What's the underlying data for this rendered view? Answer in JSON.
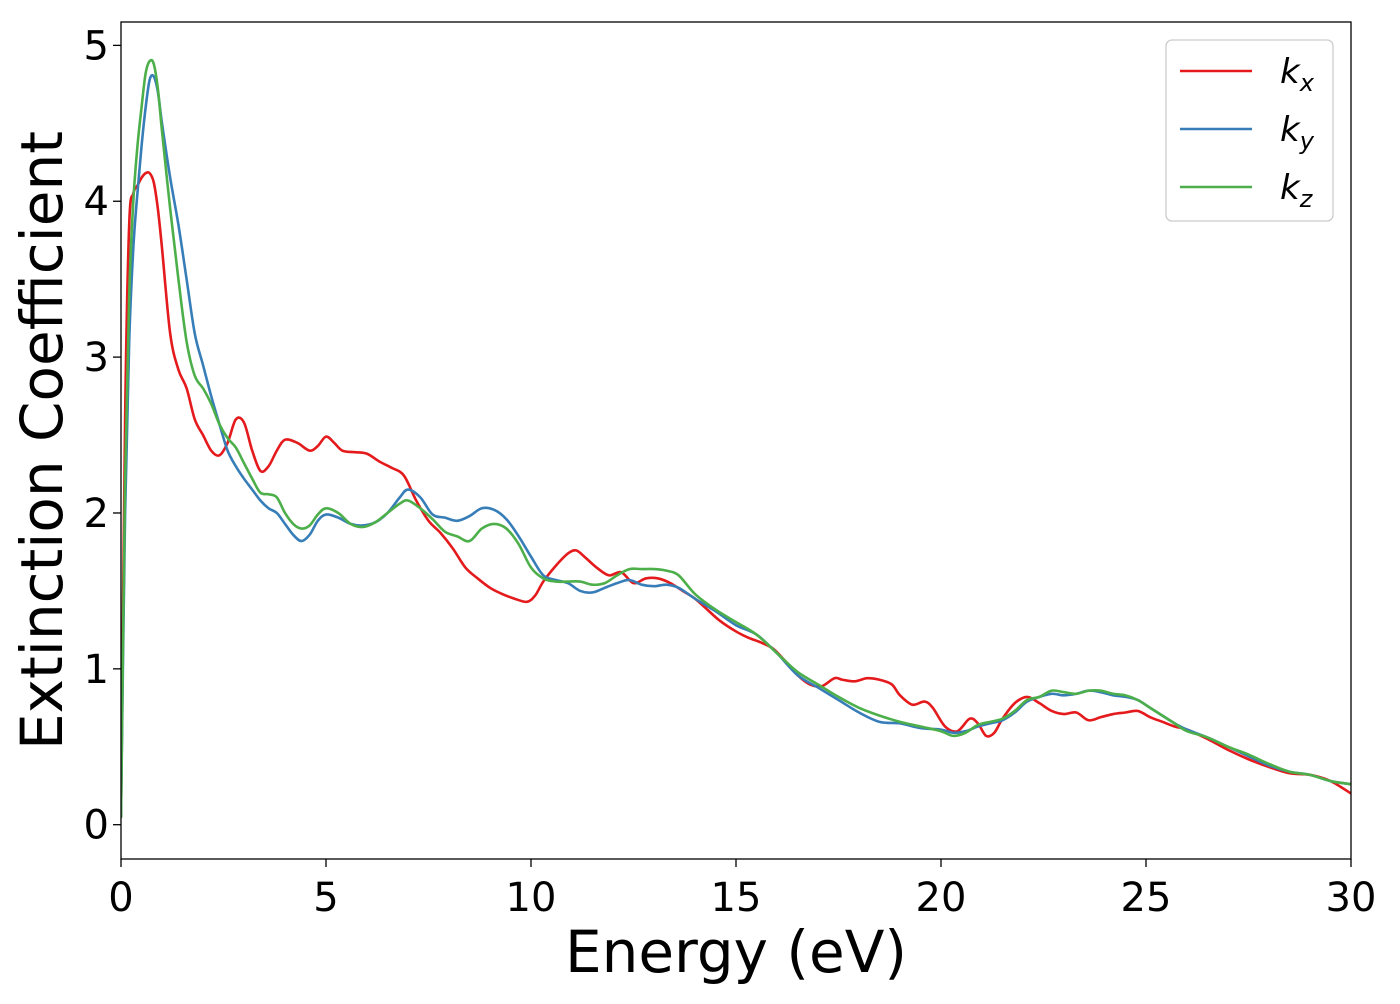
{
  "chart_data": {
    "type": "line",
    "xlabel": "Energy (eV)",
    "ylabel": "Extinction Coefficient",
    "xlim": [
      0,
      30
    ],
    "ylim": [
      -0.22,
      5.15
    ],
    "xticks": [
      0,
      5,
      10,
      15,
      20,
      25,
      30
    ],
    "yticks": [
      0,
      1,
      2,
      3,
      4,
      5
    ],
    "xtick_labels": [
      "0",
      "5",
      "10",
      "15",
      "20",
      "25",
      "30"
    ],
    "ytick_labels": [
      "0",
      "1",
      "2",
      "3",
      "4",
      "5"
    ],
    "grid": false,
    "legend_position": "top-right",
    "series": [
      {
        "name": "k_x",
        "legend_main": "k",
        "legend_sub": "x",
        "color": "#e41a1c",
        "x": [
          0,
          0.1,
          0.2,
          0.3,
          0.4,
          0.5,
          0.6,
          0.7,
          0.8,
          0.9,
          1.0,
          1.2,
          1.4,
          1.6,
          1.8,
          2.0,
          2.2,
          2.4,
          2.6,
          2.8,
          3.0,
          3.2,
          3.4,
          3.6,
          3.8,
          4.0,
          4.3,
          4.6,
          4.8,
          5.0,
          5.2,
          5.4,
          5.7,
          6.0,
          6.3,
          6.6,
          6.9,
          7.2,
          7.5,
          7.8,
          8.1,
          8.4,
          8.7,
          9.0,
          9.3,
          9.6,
          9.9,
          10.1,
          10.3,
          10.6,
          10.9,
          11.1,
          11.3,
          11.6,
          11.9,
          12.2,
          12.5,
          12.8,
          13.1,
          13.4,
          13.7,
          14.0,
          14.3,
          14.6,
          15.0,
          15.3,
          15.6,
          15.9,
          16.2,
          16.5,
          16.8,
          17.1,
          17.4,
          17.6,
          17.9,
          18.2,
          18.5,
          18.8,
          19.0,
          19.3,
          19.6,
          19.8,
          20.1,
          20.4,
          20.7,
          20.9,
          21.1,
          21.3,
          21.5,
          21.8,
          22.1,
          22.4,
          22.7,
          23.0,
          23.3,
          23.6,
          23.9,
          24.2,
          24.5,
          24.8,
          25.1,
          25.4,
          25.7,
          26.0,
          26.5,
          27.0,
          27.5,
          28.0,
          28.5,
          29.0,
          29.5,
          30.0
        ],
        "values": [
          0.05,
          2.6,
          3.85,
          4.05,
          4.1,
          4.15,
          4.18,
          4.18,
          4.12,
          3.95,
          3.7,
          3.15,
          2.92,
          2.8,
          2.6,
          2.5,
          2.4,
          2.37,
          2.45,
          2.6,
          2.58,
          2.4,
          2.27,
          2.3,
          2.4,
          2.47,
          2.45,
          2.4,
          2.43,
          2.49,
          2.45,
          2.4,
          2.39,
          2.38,
          2.33,
          2.29,
          2.24,
          2.08,
          1.95,
          1.87,
          1.77,
          1.65,
          1.58,
          1.52,
          1.48,
          1.45,
          1.43,
          1.47,
          1.56,
          1.66,
          1.74,
          1.76,
          1.72,
          1.65,
          1.6,
          1.62,
          1.55,
          1.58,
          1.58,
          1.55,
          1.5,
          1.45,
          1.38,
          1.31,
          1.24,
          1.2,
          1.17,
          1.13,
          1.05,
          0.96,
          0.9,
          0.89,
          0.94,
          0.93,
          0.92,
          0.94,
          0.93,
          0.9,
          0.83,
          0.77,
          0.79,
          0.75,
          0.63,
          0.6,
          0.68,
          0.65,
          0.57,
          0.59,
          0.68,
          0.78,
          0.82,
          0.78,
          0.73,
          0.71,
          0.72,
          0.67,
          0.69,
          0.71,
          0.72,
          0.73,
          0.69,
          0.66,
          0.63,
          0.61,
          0.55,
          0.48,
          0.42,
          0.37,
          0.33,
          0.32,
          0.28,
          0.2
        ]
      },
      {
        "name": "k_y",
        "legend_main": "k",
        "legend_sub": "y",
        "color": "#377eb8",
        "x": [
          0,
          0.1,
          0.2,
          0.3,
          0.4,
          0.5,
          0.6,
          0.7,
          0.8,
          0.9,
          1.0,
          1.2,
          1.4,
          1.6,
          1.8,
          2.0,
          2.2,
          2.4,
          2.6,
          2.8,
          3.0,
          3.2,
          3.4,
          3.6,
          3.8,
          4.0,
          4.2,
          4.4,
          4.6,
          4.8,
          5.0,
          5.3,
          5.6,
          5.9,
          6.2,
          6.5,
          6.8,
          7.0,
          7.3,
          7.6,
          7.9,
          8.2,
          8.5,
          8.8,
          9.1,
          9.4,
          9.7,
          10.0,
          10.3,
          10.6,
          10.9,
          11.2,
          11.5,
          11.8,
          12.1,
          12.4,
          12.7,
          13.0,
          13.3,
          13.6,
          14.0,
          14.5,
          15.0,
          15.5,
          16.0,
          16.5,
          17.0,
          17.5,
          18.0,
          18.5,
          19.0,
          19.5,
          20.0,
          20.3,
          20.6,
          20.9,
          21.2,
          21.5,
          21.8,
          22.1,
          22.4,
          22.7,
          23.0,
          23.3,
          23.6,
          23.9,
          24.2,
          24.5,
          24.8,
          25.1,
          25.4,
          25.7,
          26.0,
          26.5,
          27.0,
          27.5,
          28.0,
          28.5,
          29.0,
          29.5,
          30.0
        ],
        "values": [
          0.05,
          2.0,
          3.1,
          3.7,
          4.05,
          4.35,
          4.6,
          4.78,
          4.8,
          4.7,
          4.5,
          4.15,
          3.85,
          3.5,
          3.15,
          2.95,
          2.75,
          2.57,
          2.4,
          2.3,
          2.22,
          2.15,
          2.08,
          2.03,
          2.0,
          1.93,
          1.86,
          1.82,
          1.86,
          1.95,
          1.99,
          1.97,
          1.93,
          1.92,
          1.94,
          2.0,
          2.1,
          2.15,
          2.1,
          1.99,
          1.97,
          1.95,
          1.98,
          2.03,
          2.02,
          1.96,
          1.85,
          1.72,
          1.6,
          1.57,
          1.55,
          1.5,
          1.49,
          1.52,
          1.55,
          1.57,
          1.54,
          1.53,
          1.54,
          1.52,
          1.45,
          1.37,
          1.28,
          1.22,
          1.1,
          0.96,
          0.88,
          0.8,
          0.72,
          0.66,
          0.65,
          0.62,
          0.61,
          0.59,
          0.6,
          0.63,
          0.65,
          0.67,
          0.72,
          0.79,
          0.82,
          0.84,
          0.83,
          0.84,
          0.86,
          0.85,
          0.83,
          0.82,
          0.8,
          0.75,
          0.7,
          0.65,
          0.61,
          0.56,
          0.5,
          0.44,
          0.38,
          0.34,
          0.32,
          0.28,
          0.26
        ]
      },
      {
        "name": "k_z",
        "legend_main": "k",
        "legend_sub": "z",
        "color": "#4daf4a",
        "x": [
          0,
          0.1,
          0.2,
          0.3,
          0.4,
          0.5,
          0.6,
          0.7,
          0.8,
          0.9,
          1.0,
          1.2,
          1.4,
          1.6,
          1.8,
          2.0,
          2.2,
          2.4,
          2.6,
          2.8,
          3.0,
          3.2,
          3.4,
          3.6,
          3.8,
          4.0,
          4.2,
          4.4,
          4.6,
          4.8,
          5.0,
          5.3,
          5.6,
          5.9,
          6.2,
          6.5,
          6.8,
          7.0,
          7.3,
          7.6,
          7.9,
          8.2,
          8.5,
          8.8,
          9.1,
          9.4,
          9.7,
          10.0,
          10.3,
          10.6,
          10.9,
          11.2,
          11.5,
          11.8,
          12.1,
          12.4,
          12.7,
          13.0,
          13.3,
          13.6,
          14.0,
          14.5,
          15.0,
          15.5,
          16.0,
          16.5,
          17.0,
          17.5,
          18.0,
          18.5,
          19.0,
          19.5,
          20.0,
          20.3,
          20.6,
          20.9,
          21.2,
          21.5,
          21.8,
          22.1,
          22.4,
          22.7,
          23.0,
          23.3,
          23.6,
          23.9,
          24.2,
          24.5,
          24.8,
          25.1,
          25.4,
          25.7,
          26.0,
          26.5,
          27.0,
          27.5,
          28.0,
          28.5,
          29.0,
          29.5,
          30.0
        ],
        "values": [
          0.05,
          2.2,
          3.4,
          4.0,
          4.35,
          4.6,
          4.82,
          4.9,
          4.88,
          4.72,
          4.45,
          3.95,
          3.5,
          3.1,
          2.88,
          2.8,
          2.7,
          2.57,
          2.48,
          2.42,
          2.32,
          2.22,
          2.13,
          2.12,
          2.1,
          2.0,
          1.93,
          1.9,
          1.92,
          1.99,
          2.03,
          2.0,
          1.93,
          1.91,
          1.94,
          2.0,
          2.06,
          2.08,
          2.03,
          1.96,
          1.88,
          1.85,
          1.82,
          1.9,
          1.93,
          1.9,
          1.8,
          1.65,
          1.58,
          1.56,
          1.56,
          1.56,
          1.54,
          1.55,
          1.6,
          1.64,
          1.64,
          1.64,
          1.63,
          1.6,
          1.48,
          1.38,
          1.3,
          1.22,
          1.1,
          0.98,
          0.9,
          0.82,
          0.75,
          0.7,
          0.66,
          0.63,
          0.6,
          0.57,
          0.59,
          0.64,
          0.66,
          0.68,
          0.73,
          0.8,
          0.82,
          0.86,
          0.85,
          0.84,
          0.86,
          0.86,
          0.84,
          0.83,
          0.8,
          0.75,
          0.7,
          0.65,
          0.6,
          0.56,
          0.5,
          0.45,
          0.39,
          0.34,
          0.32,
          0.28,
          0.26
        ]
      }
    ]
  }
}
